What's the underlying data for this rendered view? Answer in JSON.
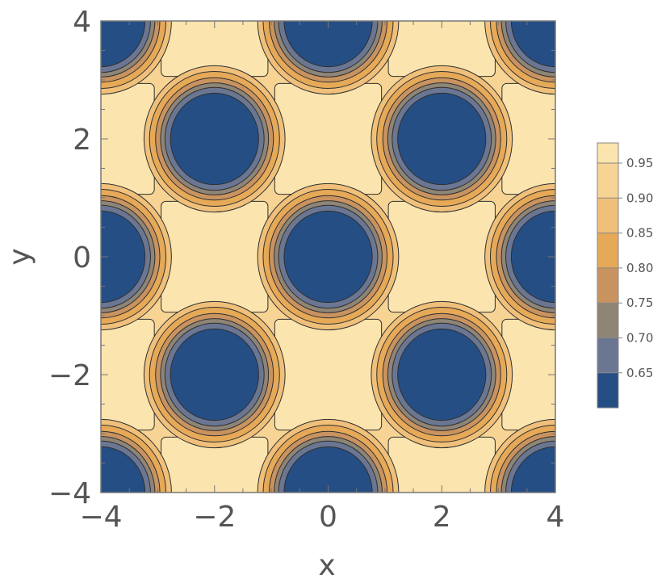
{
  "chart_data": {
    "type": "contour",
    "xlabel": "x",
    "ylabel": "y",
    "xlim": [
      -4,
      4
    ],
    "ylim": [
      -4,
      4
    ],
    "x_ticks": [
      {
        "value": -4,
        "label": "−4"
      },
      {
        "value": -2,
        "label": "−2"
      },
      {
        "value": 0,
        "label": "0"
      },
      {
        "value": 2,
        "label": "2"
      },
      {
        "value": 4,
        "label": "4"
      }
    ],
    "y_ticks": [
      {
        "value": -4,
        "label": "−4"
      },
      {
        "value": -2,
        "label": "−2"
      },
      {
        "value": 0,
        "label": "0"
      },
      {
        "value": 2,
        "label": "2"
      },
      {
        "value": 4,
        "label": "4"
      }
    ],
    "minima_centers": [
      [
        -4,
        4
      ],
      [
        0,
        4
      ],
      [
        4,
        4
      ],
      [
        -2,
        2
      ],
      [
        2,
        2
      ],
      [
        -4,
        0
      ],
      [
        0,
        0
      ],
      [
        4,
        0
      ],
      [
        -2,
        -2
      ],
      [
        2,
        -2
      ],
      [
        -4,
        -4
      ],
      [
        0,
        -4
      ],
      [
        4,
        -4
      ]
    ],
    "plateau_centers": [
      [
        -2,
        4
      ],
      [
        2,
        4
      ],
      [
        -4,
        2
      ],
      [
        0,
        2
      ],
      [
        4,
        2
      ],
      [
        -2,
        0
      ],
      [
        2,
        0
      ],
      [
        -4,
        -2
      ],
      [
        0,
        -2
      ],
      [
        4,
        -2
      ],
      [
        -2,
        -4
      ],
      [
        2,
        -4
      ]
    ],
    "legend": {
      "position": "right",
      "entries": [
        {
          "label": "0.95",
          "color": "#fbe4ad"
        },
        {
          "label": "0.90",
          "color": "#f7d494"
        },
        {
          "label": "0.85",
          "color": "#f0c07a"
        },
        {
          "label": "0.80",
          "color": "#e6a957"
        },
        {
          "label": "0.75",
          "color": "#c99360"
        },
        {
          "label": "0.70",
          "color": "#8e8577"
        },
        {
          "label": "0.65",
          "color": "#6a7692"
        }
      ],
      "bottom_color": "#254e85"
    },
    "colors": {
      "plateau": "#fbe4ad",
      "background": "#f7d494",
      "well_levels": [
        "#f0c07a",
        "#e6a957",
        "#c99360",
        "#8e8577",
        "#6a7692",
        "#254e85"
      ],
      "contour_line": "#2f2f2f"
    }
  }
}
